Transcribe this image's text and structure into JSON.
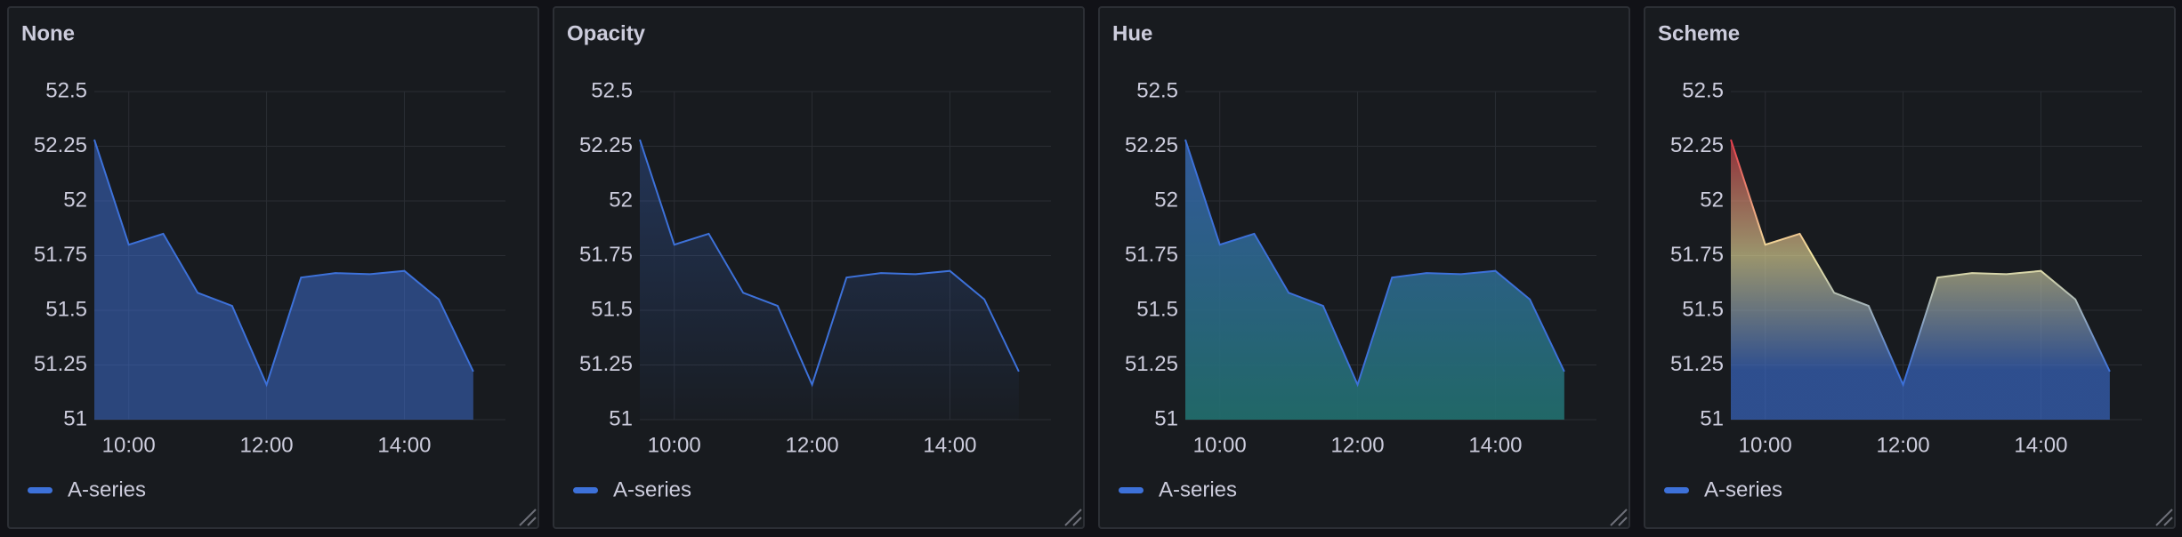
{
  "chart_data": [
    {
      "type": "area",
      "title": "None",
      "fill_gradient": "none",
      "x": [
        "09:30",
        "10:00",
        "10:30",
        "11:00",
        "11:30",
        "12:00",
        "12:30",
        "13:00",
        "13:30",
        "14:00",
        "14:30",
        "15:00"
      ],
      "series": [
        {
          "name": "A-series",
          "color": "#3d71d9",
          "values": [
            52.28,
            51.8,
            51.85,
            51.58,
            51.52,
            51.16,
            51.65,
            51.67,
            51.665,
            51.68,
            51.55,
            51.22
          ]
        }
      ],
      "xlim": [
        "09:30",
        "15:28"
      ],
      "xticks": [
        "10:00",
        "12:00",
        "14:00"
      ],
      "ylim": [
        51,
        52.5
      ],
      "yticks": [
        51,
        51.25,
        51.5,
        51.75,
        52,
        52.25,
        52.5
      ],
      "grid": true
    },
    {
      "type": "area",
      "title": "Opacity",
      "fill_gradient": "opacity",
      "x": [
        "09:30",
        "10:00",
        "10:30",
        "11:00",
        "11:30",
        "12:00",
        "12:30",
        "13:00",
        "13:30",
        "14:00",
        "14:30",
        "15:00"
      ],
      "series": [
        {
          "name": "A-series",
          "color": "#3d71d9",
          "values": [
            52.28,
            51.8,
            51.85,
            51.58,
            51.52,
            51.16,
            51.65,
            51.67,
            51.665,
            51.68,
            51.55,
            51.22
          ]
        }
      ],
      "xlim": [
        "09:30",
        "15:28"
      ],
      "xticks": [
        "10:00",
        "12:00",
        "14:00"
      ],
      "ylim": [
        51,
        52.5
      ],
      "yticks": [
        51,
        51.25,
        51.5,
        51.75,
        52,
        52.25,
        52.5
      ],
      "grid": true
    },
    {
      "type": "area",
      "title": "Hue",
      "fill_gradient": "hue",
      "x": [
        "09:30",
        "10:00",
        "10:30",
        "11:00",
        "11:30",
        "12:00",
        "12:30",
        "13:00",
        "13:30",
        "14:00",
        "14:30",
        "15:00"
      ],
      "series": [
        {
          "name": "A-series",
          "color": "#3d71d9",
          "values": [
            52.28,
            51.8,
            51.85,
            51.58,
            51.52,
            51.16,
            51.65,
            51.67,
            51.665,
            51.68,
            51.55,
            51.22
          ]
        }
      ],
      "xlim": [
        "09:30",
        "15:28"
      ],
      "xticks": [
        "10:00",
        "12:00",
        "14:00"
      ],
      "ylim": [
        51,
        52.5
      ],
      "yticks": [
        51,
        51.25,
        51.5,
        51.75,
        52,
        52.25,
        52.5
      ],
      "grid": true
    },
    {
      "type": "area",
      "title": "Scheme",
      "fill_gradient": "scheme",
      "x": [
        "09:30",
        "10:00",
        "10:30",
        "11:00",
        "11:30",
        "12:00",
        "12:30",
        "13:00",
        "13:30",
        "14:00",
        "14:30",
        "15:00"
      ],
      "series": [
        {
          "name": "A-series",
          "color": "#3d71d9",
          "values": [
            52.28,
            51.8,
            51.85,
            51.58,
            51.52,
            51.16,
            51.65,
            51.67,
            51.665,
            51.68,
            51.55,
            51.22
          ]
        }
      ],
      "xlim": [
        "09:30",
        "15:28"
      ],
      "xticks": [
        "10:00",
        "12:00",
        "14:00"
      ],
      "ylim": [
        51,
        52.5
      ],
      "yticks": [
        51,
        51.25,
        51.5,
        51.75,
        52,
        52.25,
        52.5
      ],
      "grid": true
    }
  ]
}
